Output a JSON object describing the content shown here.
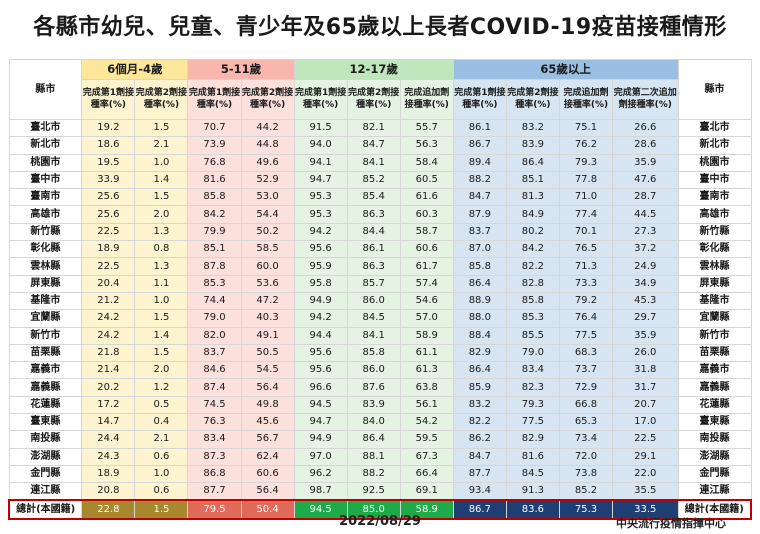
{
  "title": "各縣市幼兒、兒童、青少年及65歲以上長者COVID-19疫苗接種情形",
  "county_header": "縣市",
  "groups": [
    {
      "label": "6個月-4歲",
      "subs": [
        "完成第1劑接種率(%)",
        "完成第2劑接種率(%)"
      ]
    },
    {
      "label": "5-11歲",
      "subs": [
        "完成第1劑接種率(%)",
        "完成第2劑接種率(%)"
      ]
    },
    {
      "label": "12-17歲",
      "subs": [
        "完成第1劑接種率(%)",
        "完成第2劑接種率(%)",
        "完成追加劑接種率(%)"
      ]
    },
    {
      "label": "65歲以上",
      "subs": [
        "完成第1劑接種率(%)",
        "完成第2劑接種率(%)",
        "完成追加劑接種率(%)",
        "完成第二次追加劑接種率(%)"
      ]
    }
  ],
  "rows": [
    {
      "county": "臺北市",
      "v": [
        "19.2",
        "1.5",
        "70.7",
        "44.2",
        "91.5",
        "82.1",
        "55.7",
        "86.1",
        "83.2",
        "75.1",
        "26.6"
      ]
    },
    {
      "county": "新北市",
      "v": [
        "18.6",
        "2.1",
        "73.9",
        "44.8",
        "94.0",
        "84.7",
        "56.3",
        "86.7",
        "83.9",
        "76.2",
        "28.6"
      ]
    },
    {
      "county": "桃園市",
      "v": [
        "19.5",
        "1.0",
        "76.8",
        "49.6",
        "94.1",
        "84.1",
        "58.4",
        "89.4",
        "86.4",
        "79.3",
        "35.9"
      ]
    },
    {
      "county": "臺中市",
      "v": [
        "33.9",
        "1.4",
        "81.6",
        "52.9",
        "94.7",
        "85.2",
        "60.5",
        "88.2",
        "85.1",
        "77.8",
        "47.6"
      ]
    },
    {
      "county": "臺南市",
      "v": [
        "25.6",
        "1.5",
        "85.8",
        "53.0",
        "95.3",
        "85.4",
        "61.6",
        "84.7",
        "81.3",
        "71.0",
        "28.7"
      ]
    },
    {
      "county": "高雄市",
      "v": [
        "25.6",
        "2.0",
        "84.2",
        "54.4",
        "95.3",
        "86.3",
        "60.3",
        "87.9",
        "84.9",
        "77.4",
        "44.5"
      ]
    },
    {
      "county": "新竹縣",
      "v": [
        "22.5",
        "1.3",
        "79.9",
        "50.2",
        "94.2",
        "84.4",
        "58.7",
        "83.7",
        "80.2",
        "70.1",
        "27.3"
      ]
    },
    {
      "county": "彰化縣",
      "v": [
        "18.9",
        "0.8",
        "85.1",
        "58.5",
        "95.6",
        "86.1",
        "60.6",
        "87.0",
        "84.2",
        "76.5",
        "37.2"
      ]
    },
    {
      "county": "雲林縣",
      "v": [
        "22.5",
        "1.3",
        "87.8",
        "60.0",
        "95.9",
        "86.3",
        "61.7",
        "85.8",
        "82.2",
        "71.3",
        "24.9"
      ]
    },
    {
      "county": "屏東縣",
      "v": [
        "20.4",
        "1.1",
        "85.3",
        "53.6",
        "95.8",
        "85.7",
        "57.4",
        "86.4",
        "82.8",
        "73.3",
        "34.9"
      ]
    },
    {
      "county": "基隆市",
      "v": [
        "21.2",
        "1.0",
        "74.4",
        "47.2",
        "94.9",
        "86.0",
        "54.6",
        "88.9",
        "85.8",
        "79.2",
        "45.3"
      ]
    },
    {
      "county": "宜蘭縣",
      "v": [
        "24.2",
        "1.5",
        "79.0",
        "40.3",
        "94.2",
        "84.5",
        "57.0",
        "88.0",
        "85.3",
        "76.4",
        "29.7"
      ]
    },
    {
      "county": "新竹市",
      "v": [
        "24.2",
        "1.4",
        "82.0",
        "49.1",
        "94.4",
        "84.1",
        "58.9",
        "88.4",
        "85.5",
        "77.5",
        "35.9"
      ]
    },
    {
      "county": "苗栗縣",
      "v": [
        "21.8",
        "1.5",
        "83.7",
        "50.5",
        "95.6",
        "85.8",
        "61.1",
        "82.9",
        "79.0",
        "68.3",
        "26.0"
      ]
    },
    {
      "county": "嘉義市",
      "v": [
        "21.4",
        "2.0",
        "84.6",
        "54.5",
        "95.6",
        "86.0",
        "61.3",
        "86.4",
        "83.4",
        "73.7",
        "31.8"
      ]
    },
    {
      "county": "嘉義縣",
      "v": [
        "20.2",
        "1.2",
        "87.4",
        "56.4",
        "96.6",
        "87.6",
        "63.8",
        "85.9",
        "82.3",
        "72.9",
        "31.7"
      ]
    },
    {
      "county": "花蓮縣",
      "v": [
        "17.2",
        "0.5",
        "74.5",
        "49.8",
        "94.5",
        "83.9",
        "56.1",
        "83.2",
        "79.3",
        "66.8",
        "20.7"
      ]
    },
    {
      "county": "臺東縣",
      "v": [
        "14.7",
        "0.4",
        "76.3",
        "45.6",
        "94.7",
        "84.0",
        "54.2",
        "82.2",
        "77.5",
        "65.3",
        "17.0"
      ]
    },
    {
      "county": "南投縣",
      "v": [
        "24.4",
        "2.1",
        "83.4",
        "56.7",
        "94.9",
        "86.4",
        "59.5",
        "86.2",
        "82.9",
        "73.4",
        "22.5"
      ]
    },
    {
      "county": "澎湖縣",
      "v": [
        "24.3",
        "0.6",
        "87.3",
        "62.4",
        "97.0",
        "88.1",
        "67.3",
        "84.7",
        "81.6",
        "72.0",
        "29.1"
      ]
    },
    {
      "county": "金門縣",
      "v": [
        "18.9",
        "1.0",
        "86.8",
        "60.6",
        "96.2",
        "88.2",
        "66.4",
        "87.7",
        "84.5",
        "73.8",
        "22.0"
      ]
    },
    {
      "county": "連江縣",
      "v": [
        "20.8",
        "0.6",
        "87.7",
        "56.4",
        "98.7",
        "92.5",
        "69.1",
        "93.4",
        "91.3",
        "85.2",
        "35.5"
      ]
    }
  ],
  "total": {
    "county": "總計(本國籍)",
    "v": [
      "22.8",
      "1.5",
      "79.5",
      "50.4",
      "94.5",
      "85.0",
      "58.9",
      "86.7",
      "83.6",
      "75.3",
      "33.5"
    ]
  },
  "date": "2022/08/29",
  "source": "中央流行疫情指揮中心"
}
